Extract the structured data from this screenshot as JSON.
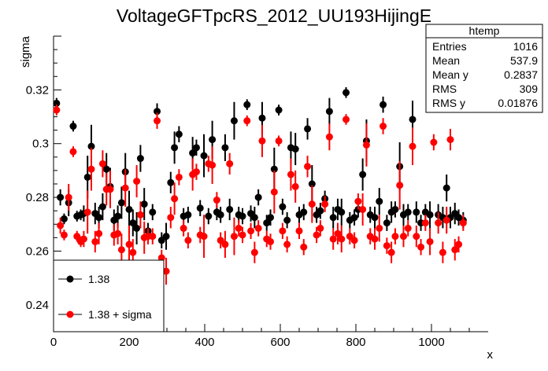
{
  "chart_data": {
    "type": "scatter",
    "title": "VoltageGFTpcRS_2012_UU193HijingE",
    "xlabel": "x",
    "ylabel": "sigma",
    "xlim": [
      0,
      1150
    ],
    "ylim": [
      0.23,
      0.34
    ],
    "x_ticks": [
      0,
      200,
      400,
      600,
      800,
      1000
    ],
    "y_ticks": [
      0.24,
      0.26,
      0.28,
      0.3,
      0.32
    ],
    "x_tick_labels": [
      "0",
      "200",
      "400",
      "600",
      "800",
      "1000"
    ],
    "y_tick_labels": [
      "0.24",
      "0.26",
      "0.28",
      "0.3",
      "0.32"
    ],
    "grid": false,
    "legend_position": "bottom-left",
    "stats_box": {
      "title": "htemp",
      "rows": [
        {
          "label": "Entries",
          "value": "1016"
        },
        {
          "label": "Mean",
          "value": "537.9"
        },
        {
          "label": "Mean y",
          "value": "0.2837"
        },
        {
          "label": "RMS",
          "value": "309"
        },
        {
          "label": "RMS y",
          "value": "0.01876"
        }
      ]
    },
    "series": [
      {
        "name": "1.38",
        "color": "#000000",
        "points": [
          [
            8,
            0.315,
            0.002
          ],
          [
            18,
            0.28,
            0.003
          ],
          [
            28,
            0.272,
            0.002
          ],
          [
            40,
            0.278,
            0.005
          ],
          [
            52,
            0.3065,
            0.002
          ],
          [
            62,
            0.273,
            0.002
          ],
          [
            72,
            0.2735,
            0.002
          ],
          [
            80,
            0.274,
            0.003
          ],
          [
            90,
            0.2875,
            0.008
          ],
          [
            100,
            0.299,
            0.008
          ],
          [
            110,
            0.274,
            0.004
          ],
          [
            120,
            0.2725,
            0.004
          ],
          [
            130,
            0.2765,
            0.005
          ],
          [
            140,
            0.2905,
            0.006
          ],
          [
            150,
            0.284,
            0.007
          ],
          [
            160,
            0.2715,
            0.004
          ],
          [
            170,
            0.273,
            0.004
          ],
          [
            180,
            0.278,
            0.006
          ],
          [
            190,
            0.2895,
            0.007
          ],
          [
            200,
            0.2755,
            0.007
          ],
          [
            210,
            0.2705,
            0.005
          ],
          [
            220,
            0.2685,
            0.006
          ],
          [
            230,
            0.2945,
            0.005
          ],
          [
            240,
            0.2775,
            0.006
          ],
          [
            250,
            0.2675,
            0.003
          ],
          [
            262,
            0.2745,
            0.003
          ],
          [
            274,
            0.312,
            0.003
          ],
          [
            286,
            0.264,
            0.003
          ],
          [
            298,
            0.2655,
            0.005
          ],
          [
            310,
            0.2855,
            0.004
          ],
          [
            320,
            0.2985,
            0.006
          ],
          [
            332,
            0.3035,
            0.003
          ],
          [
            344,
            0.273,
            0.003
          ],
          [
            356,
            0.2735,
            0.003
          ],
          [
            368,
            0.2965,
            0.006
          ],
          [
            378,
            0.2985,
            0.003
          ],
          [
            388,
            0.276,
            0.003
          ],
          [
            398,
            0.2955,
            0.008
          ],
          [
            410,
            0.273,
            0.003
          ],
          [
            420,
            0.3015,
            0.007
          ],
          [
            432,
            0.2745,
            0.003
          ],
          [
            442,
            0.2735,
            0.003
          ],
          [
            454,
            0.2985,
            0.005
          ],
          [
            466,
            0.2755,
            0.004
          ],
          [
            478,
            0.3085,
            0.007
          ],
          [
            490,
            0.2735,
            0.003
          ],
          [
            500,
            0.273,
            0.003
          ],
          [
            512,
            0.3145,
            0.002
          ],
          [
            522,
            0.274,
            0.003
          ],
          [
            532,
            0.2725,
            0.004
          ],
          [
            542,
            0.28,
            0.003
          ],
          [
            552,
            0.3095,
            0.006
          ],
          [
            564,
            0.2705,
            0.003
          ],
          [
            574,
            0.2725,
            0.003
          ],
          [
            584,
            0.2905,
            0.008
          ],
          [
            596,
            0.3125,
            0.002
          ],
          [
            606,
            0.2765,
            0.003
          ],
          [
            618,
            0.2715,
            0.003
          ],
          [
            628,
            0.2985,
            0.006
          ],
          [
            640,
            0.298,
            0.006
          ],
          [
            650,
            0.2735,
            0.003
          ],
          [
            662,
            0.2745,
            0.003
          ],
          [
            672,
            0.3055,
            0.004
          ],
          [
            684,
            0.285,
            0.007
          ],
          [
            696,
            0.2735,
            0.003
          ],
          [
            706,
            0.275,
            0.003
          ],
          [
            718,
            0.2795,
            0.003
          ],
          [
            730,
            0.312,
            0.005
          ],
          [
            740,
            0.2725,
            0.004
          ],
          [
            752,
            0.2755,
            0.004
          ],
          [
            762,
            0.2745,
            0.005
          ],
          [
            774,
            0.319,
            0.002
          ],
          [
            784,
            0.2715,
            0.003
          ],
          [
            796,
            0.2725,
            0.003
          ],
          [
            806,
            0.2755,
            0.003
          ],
          [
            818,
            0.2885,
            0.006
          ],
          [
            828,
            0.301,
            0.008
          ],
          [
            838,
            0.2735,
            0.003
          ],
          [
            850,
            0.2725,
            0.004
          ],
          [
            862,
            0.2785,
            0.005
          ],
          [
            872,
            0.3145,
            0.003
          ],
          [
            882,
            0.2705,
            0.003
          ],
          [
            894,
            0.2745,
            0.004
          ],
          [
            904,
            0.2755,
            0.003
          ],
          [
            916,
            0.2915,
            0.009
          ],
          [
            926,
            0.2735,
            0.004
          ],
          [
            938,
            0.2745,
            0.003
          ],
          [
            950,
            0.309,
            0.007
          ],
          [
            960,
            0.2745,
            0.004
          ],
          [
            972,
            0.2705,
            0.003
          ],
          [
            984,
            0.2745,
            0.003
          ],
          [
            996,
            0.2735,
            0.005
          ],
          [
            1006,
            0.3155,
            0.003
          ],
          [
            1018,
            0.2735,
            0.004
          ],
          [
            1030,
            0.2725,
            0.004
          ],
          [
            1040,
            0.2835,
            0.005
          ],
          [
            1050,
            0.2725,
            0.004
          ],
          [
            1062,
            0.274,
            0.004
          ],
          [
            1072,
            0.2725,
            0.003
          ],
          [
            1084,
            0.2715,
            0.003
          ]
        ]
      },
      {
        "name": "1.38 + sigma",
        "color": "#ff0000",
        "points": [
          [
            8,
            0.3125,
            0.002
          ],
          [
            18,
            0.2695,
            0.003
          ],
          [
            28,
            0.266,
            0.002
          ],
          [
            40,
            0.28,
            0.005
          ],
          [
            52,
            0.297,
            0.002
          ],
          [
            62,
            0.2655,
            0.002
          ],
          [
            72,
            0.2635,
            0.002
          ],
          [
            80,
            0.2645,
            0.003
          ],
          [
            90,
            0.2745,
            0.008
          ],
          [
            100,
            0.2905,
            0.008
          ],
          [
            110,
            0.2635,
            0.004
          ],
          [
            120,
            0.2665,
            0.004
          ],
          [
            130,
            0.2925,
            0.005
          ],
          [
            140,
            0.283,
            0.006
          ],
          [
            150,
            0.283,
            0.007
          ],
          [
            160,
            0.266,
            0.004
          ],
          [
            170,
            0.2665,
            0.004
          ],
          [
            180,
            0.2605,
            0.006
          ],
          [
            190,
            0.2835,
            0.007
          ],
          [
            200,
            0.2625,
            0.007
          ],
          [
            210,
            0.2595,
            0.005
          ],
          [
            220,
            0.286,
            0.006
          ],
          [
            230,
            0.2735,
            0.005
          ],
          [
            240,
            0.265,
            0.006
          ],
          [
            250,
            0.2655,
            0.003
          ],
          [
            262,
            0.2655,
            0.003
          ],
          [
            274,
            0.3085,
            0.003
          ],
          [
            286,
            0.2575,
            0.003
          ],
          [
            298,
            0.2525,
            0.005
          ],
          [
            310,
            0.2725,
            0.004
          ],
          [
            320,
            0.2795,
            0.006
          ],
          [
            332,
            0.2875,
            0.003
          ],
          [
            344,
            0.2685,
            0.003
          ],
          [
            356,
            0.264,
            0.003
          ],
          [
            368,
            0.2885,
            0.006
          ],
          [
            378,
            0.2895,
            0.003
          ],
          [
            388,
            0.266,
            0.003
          ],
          [
            398,
            0.2655,
            0.008
          ],
          [
            410,
            0.2925,
            0.003
          ],
          [
            420,
            0.292,
            0.007
          ],
          [
            432,
            0.279,
            0.003
          ],
          [
            442,
            0.264,
            0.003
          ],
          [
            454,
            0.2625,
            0.005
          ],
          [
            466,
            0.2925,
            0.004
          ],
          [
            478,
            0.2655,
            0.007
          ],
          [
            490,
            0.2685,
            0.003
          ],
          [
            500,
            0.266,
            0.003
          ],
          [
            512,
            0.3085,
            0.002
          ],
          [
            522,
            0.2675,
            0.003
          ],
          [
            532,
            0.2595,
            0.004
          ],
          [
            542,
            0.2685,
            0.003
          ],
          [
            552,
            0.301,
            0.006
          ],
          [
            564,
            0.2645,
            0.003
          ],
          [
            574,
            0.2635,
            0.003
          ],
          [
            584,
            0.282,
            0.008
          ],
          [
            596,
            0.301,
            0.002
          ],
          [
            606,
            0.2675,
            0.003
          ],
          [
            618,
            0.2625,
            0.003
          ],
          [
            628,
            0.2885,
            0.006
          ],
          [
            640,
            0.284,
            0.006
          ],
          [
            650,
            0.2675,
            0.003
          ],
          [
            662,
            0.2615,
            0.003
          ],
          [
            672,
            0.2915,
            0.004
          ],
          [
            684,
            0.2775,
            0.007
          ],
          [
            696,
            0.266,
            0.003
          ],
          [
            706,
            0.2685,
            0.003
          ],
          [
            718,
            0.2775,
            0.003
          ],
          [
            730,
            0.3025,
            0.005
          ],
          [
            740,
            0.2645,
            0.004
          ],
          [
            752,
            0.2665,
            0.004
          ],
          [
            762,
            0.2645,
            0.005
          ],
          [
            774,
            0.309,
            0.002
          ],
          [
            784,
            0.2655,
            0.003
          ],
          [
            796,
            0.264,
            0.003
          ],
          [
            806,
            0.2785,
            0.003
          ],
          [
            818,
            0.2755,
            0.006
          ],
          [
            828,
            0.2995,
            0.008
          ],
          [
            838,
            0.2655,
            0.003
          ],
          [
            850,
            0.2645,
            0.004
          ],
          [
            862,
            0.2685,
            0.005
          ],
          [
            872,
            0.3065,
            0.003
          ],
          [
            882,
            0.262,
            0.003
          ],
          [
            894,
            0.2595,
            0.004
          ],
          [
            904,
            0.2655,
            0.003
          ],
          [
            916,
            0.2845,
            0.009
          ],
          [
            926,
            0.2655,
            0.004
          ],
          [
            938,
            0.2685,
            0.003
          ],
          [
            950,
            0.299,
            0.007
          ],
          [
            960,
            0.2655,
            0.004
          ],
          [
            972,
            0.2615,
            0.003
          ],
          [
            984,
            0.2705,
            0.003
          ],
          [
            996,
            0.2635,
            0.005
          ],
          [
            1006,
            0.3005,
            0.003
          ],
          [
            1018,
            0.2705,
            0.004
          ],
          [
            1030,
            0.2595,
            0.004
          ],
          [
            1040,
            0.2715,
            0.005
          ],
          [
            1050,
            0.3015,
            0.004
          ],
          [
            1062,
            0.2605,
            0.004
          ],
          [
            1072,
            0.2625,
            0.003
          ],
          [
            1084,
            0.2705,
            0.003
          ]
        ]
      }
    ]
  }
}
